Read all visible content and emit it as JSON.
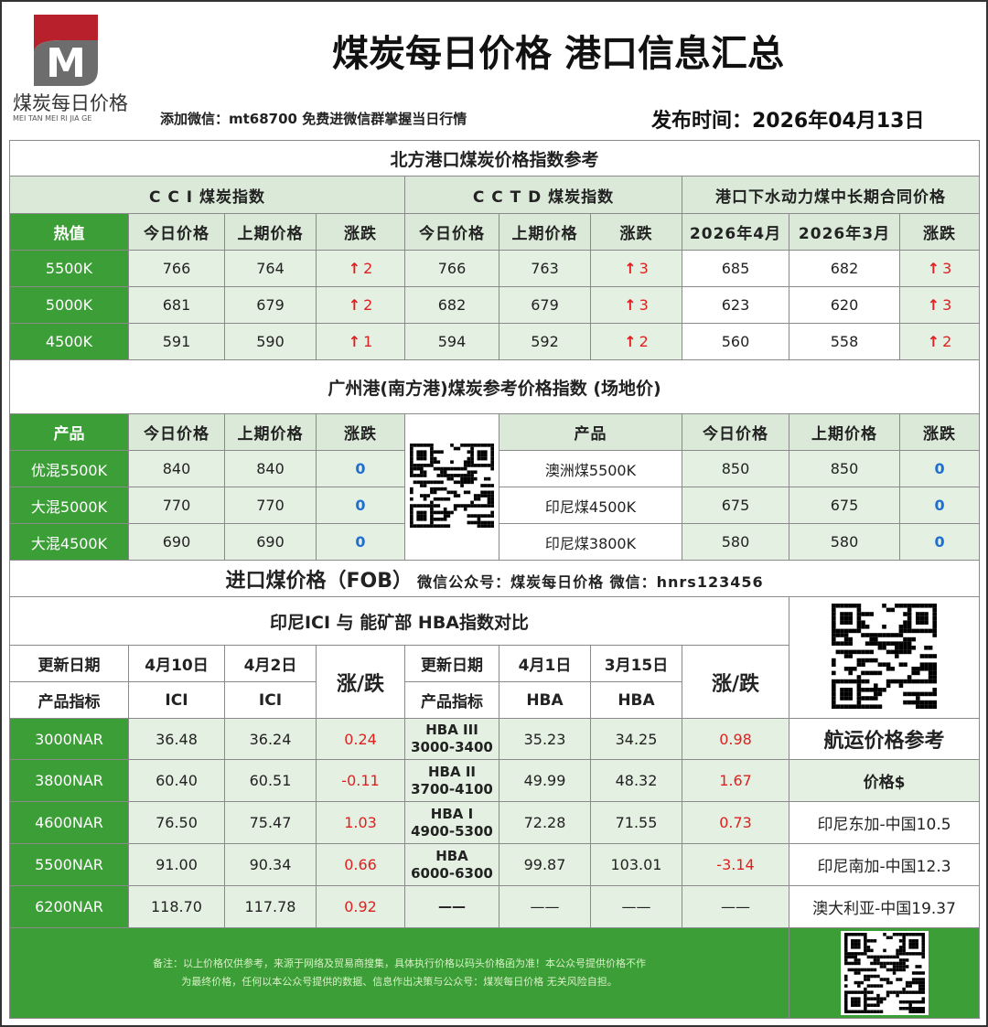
{
  "header": {
    "logo_text": "煤炭每日价格",
    "logo_pinyin": "MEI TAN MEI RI JIA GE",
    "title": "煤炭每日价格 港口信息汇总",
    "wechat_note": "添加微信：mt68700 免费进微信群掌握当日行情",
    "publish": "发布时间：2026年04月13日"
  },
  "north": {
    "title": "北方港口煤炭价格指数参考",
    "groups": [
      "C C I  煤炭指数",
      "C C T D  煤炭指数",
      "港口下水动力煤中长期合同价格"
    ],
    "columns": [
      "热值",
      "今日价格",
      "上期价格",
      "涨跌",
      "今日价格",
      "上期价格",
      "涨跌",
      "2026年4月",
      "2026年3月",
      "涨跌"
    ],
    "rows": [
      [
        "5500K",
        "766",
        "764",
        "2",
        "766",
        "763",
        "3",
        "685",
        "682",
        "3"
      ],
      [
        "5000K",
        "681",
        "679",
        "2",
        "682",
        "679",
        "3",
        "623",
        "620",
        "3"
      ],
      [
        "4500K",
        "591",
        "590",
        "1",
        "594",
        "592",
        "2",
        "560",
        "558",
        "2"
      ]
    ]
  },
  "south": {
    "title": "广州港(南方港)煤炭参考价格指数   (场地价)",
    "left_columns": [
      "产品",
      "今日价格",
      "上期价格",
      "涨跌"
    ],
    "right_columns": [
      "产品",
      "今日价格",
      "上期价格",
      "涨跌"
    ],
    "left_rows": [
      [
        "优混5500K",
        "840",
        "840",
        "0"
      ],
      [
        "大混5000K",
        "770",
        "770",
        "0"
      ],
      [
        "大混4500K",
        "690",
        "690",
        "0"
      ]
    ],
    "right_rows": [
      [
        "澳洲煤5500K",
        "850",
        "850",
        "0"
      ],
      [
        "印尼煤4500K",
        "675",
        "675",
        "0"
      ],
      [
        "印尼煤3800K",
        "580",
        "580",
        "0"
      ]
    ]
  },
  "import": {
    "title": "进口煤价格（FOB）",
    "subtitle": "微信公众号：煤炭每日价格    微信：hnrs123456",
    "compare_title": "印尼ICI   与   能矿部 HBA指数对比",
    "h1": [
      "更新日期",
      "4月10日",
      "4月2日",
      "涨/跌",
      "更新日期",
      "4月1日",
      "3月15日",
      "涨/跌"
    ],
    "h2": [
      "产品指标",
      "ICI",
      "ICI",
      "产品指标",
      "HBA",
      "HBA"
    ],
    "rows": [
      [
        "3000NAR",
        "36.48",
        "36.24",
        "0.24",
        "HBA III",
        "3000-3400",
        "35.23",
        "34.25",
        "0.98"
      ],
      [
        "3800NAR",
        "60.40",
        "60.51",
        "-0.11",
        "HBA II",
        "3700-4100",
        "49.99",
        "48.32",
        "1.67"
      ],
      [
        "4600NAR",
        "76.50",
        "75.47",
        "1.03",
        "HBA I",
        "4900-5300",
        "72.28",
        "71.55",
        "0.73"
      ],
      [
        "5500NAR",
        "91.00",
        "90.34",
        "0.66",
        "HBA",
        "6000-6300",
        "99.87",
        "103.01",
        "-3.14"
      ],
      [
        "6200NAR",
        "118.70",
        "117.78",
        "0.92",
        "——",
        "",
        "——",
        "——",
        "——"
      ]
    ],
    "shipping_title": "航运价格参考",
    "shipping_unit": "价格$",
    "shipping": [
      "印尼东加-中国10.5",
      "印尼南加-中国12.3",
      "澳大利亚-中国19.37"
    ]
  },
  "footer": {
    "note1": "备注：以上价格仅供参考，来源于网络及贸易商搜集，具体执行价格以码头价格函为准！本公众号提供价格不作",
    "note2": "为最终价格，任何以本公众号提供的数据、信息作出决策与公众号：煤炭每日价格  无关风险自担。"
  },
  "colors": {
    "green": "#3c9e36",
    "light_green": "#e4f0e1",
    "up": "#e02020",
    "flat": "#1f6fd1"
  }
}
